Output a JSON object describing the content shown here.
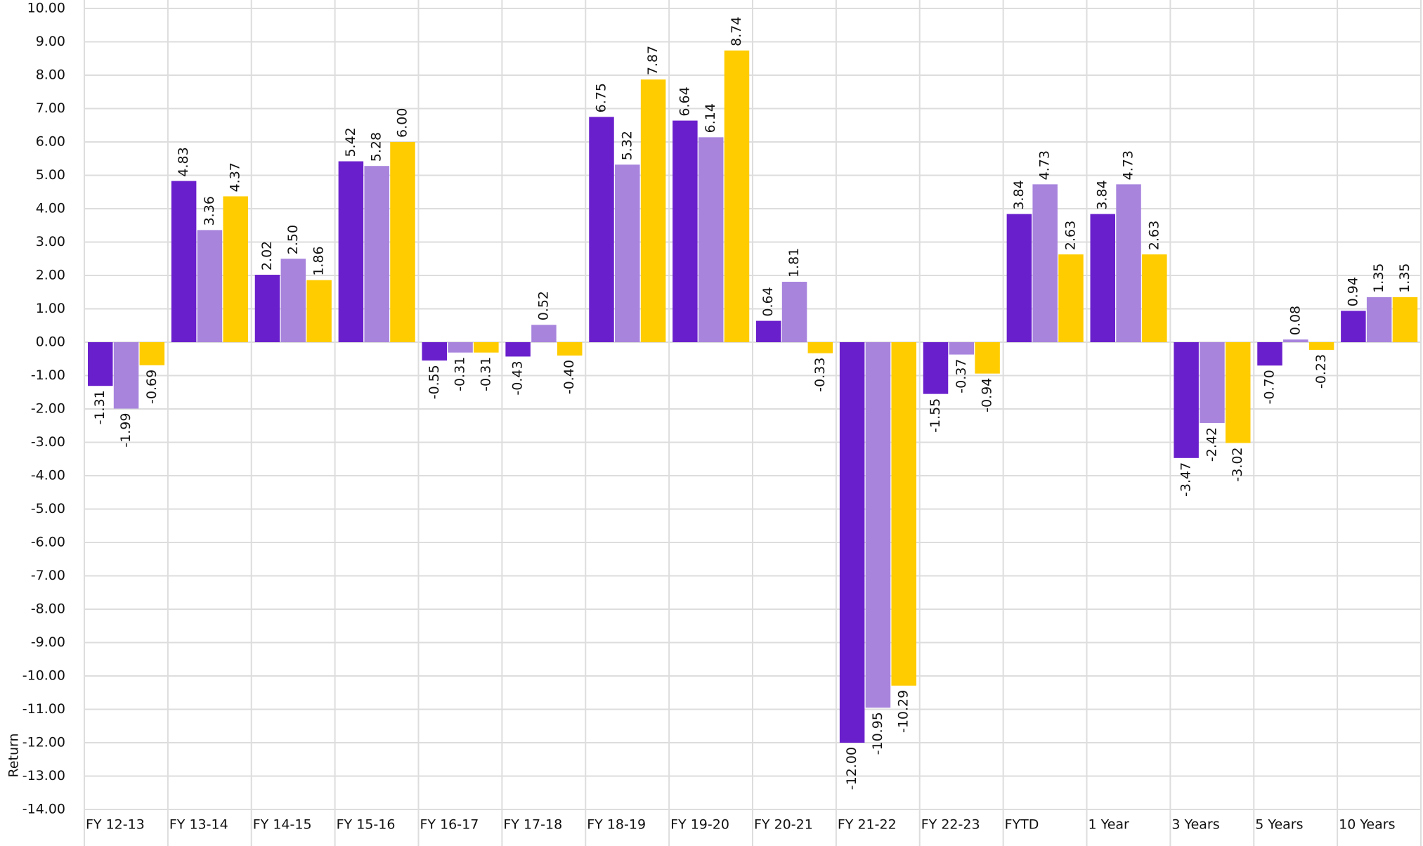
{
  "chart_data": {
    "type": "bar",
    "y_label": "Return",
    "categories": [
      "FY 12-13",
      "FY 13-14",
      "FY 14-15",
      "FY 15-16",
      "FY 16-17",
      "FY 17-18",
      "FY 18-19",
      "FY 19-20",
      "FY 20-21",
      "FY 21-22",
      "FY 22-23",
      "FYTD",
      "1 Year",
      "3 Years",
      "5 Years",
      "10 Years"
    ],
    "series": [
      {
        "color": "#6a1fcc",
        "values": [
          -1.31,
          4.83,
          2.02,
          5.42,
          -0.55,
          -0.43,
          6.75,
          6.64,
          0.64,
          -12,
          -1.55,
          3.84,
          3.84,
          -3.47,
          -0.7,
          0.94
        ],
        "value_labels": [
          "-1.31",
          "4.83",
          "2.02",
          "5.42",
          "-0.55",
          "-0.43",
          "6.75",
          "6.64",
          "0.64",
          "-12.00",
          "-1.55",
          "3.84",
          "3.84",
          "-3.47",
          "-0.70",
          "0.94"
        ]
      },
      {
        "color": "#a884dd",
        "values": [
          -1.99,
          3.36,
          2.5,
          5.28,
          -0.31,
          0.52,
          5.32,
          6.14,
          1.81,
          -10.95,
          -0.37,
          4.73,
          4.73,
          -2.42,
          0.08,
          1.35
        ],
        "value_labels": [
          "-1.99",
          "3.36",
          "2.50",
          "5.28",
          "-0.31",
          "0.52",
          "5.32",
          "6.14",
          "1.81",
          "-10.95",
          "-0.37",
          "4.73",
          "4.73",
          "-2.42",
          "0.08",
          "1.35"
        ]
      },
      {
        "color": "#ffcc00",
        "values": [
          -0.69,
          4.37,
          1.86,
          6,
          -0.31,
          -0.4,
          7.87,
          8.74,
          -0.33,
          -10.29,
          -0.94,
          2.63,
          2.63,
          -3.02,
          -0.23,
          1.35
        ],
        "value_labels": [
          "-0.69",
          "4.37",
          "1.86",
          "6.00",
          "-0.31",
          "-0.40",
          "7.87",
          "8.74",
          "-0.33",
          "-10.29",
          "-0.94",
          "2.63",
          "2.63",
          "-3.02",
          "-0.23",
          "1.35"
        ]
      }
    ],
    "ylim": [
      -14,
      10
    ],
    "yticks": [
      {
        "value": 10,
        "label": "10.00"
      },
      {
        "value": 9,
        "label": "9.00"
      },
      {
        "value": 8,
        "label": "8.00"
      },
      {
        "value": 7,
        "label": "7.00"
      },
      {
        "value": 6,
        "label": "6.00"
      },
      {
        "value": 5,
        "label": "5.00"
      },
      {
        "value": 4,
        "label": "4.00"
      },
      {
        "value": 3,
        "label": "3.00"
      },
      {
        "value": 2,
        "label": "2.00"
      },
      {
        "value": 1,
        "label": "1.00"
      },
      {
        "value": 0,
        "label": "0.00"
      },
      {
        "value": -1,
        "label": "-1.00"
      },
      {
        "value": -2,
        "label": "-2.00"
      },
      {
        "value": -3,
        "label": "-3.00"
      },
      {
        "value": -4,
        "label": "-4.00"
      },
      {
        "value": -5,
        "label": "-5.00"
      },
      {
        "value": -6,
        "label": "-6.00"
      },
      {
        "value": -7,
        "label": "-7.00"
      },
      {
        "value": -8,
        "label": "-8.00"
      },
      {
        "value": -9,
        "label": "-9.00"
      },
      {
        "value": -10,
        "label": "-10.00"
      },
      {
        "value": -11,
        "label": "-11.00"
      },
      {
        "value": -12,
        "label": "-12.00"
      },
      {
        "value": -13,
        "label": "-13.00"
      },
      {
        "value": -14,
        "label": "-14.00"
      }
    ],
    "grid": true
  }
}
